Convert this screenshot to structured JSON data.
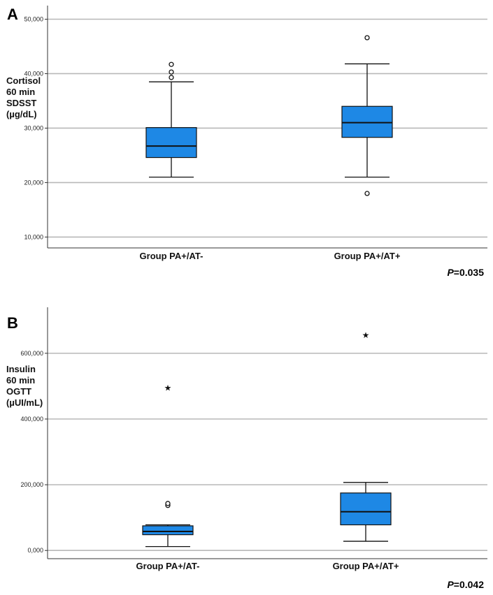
{
  "chart_data": [
    {
      "panel_label": "A",
      "type": "box",
      "ylabel": [
        "Cortisol",
        "60 min",
        "SDSST",
        "(µg/dL)"
      ],
      "ylim": [
        8,
        52.5
      ],
      "ticks": [
        10,
        20,
        30,
        40,
        50
      ],
      "tick_labels": [
        "10,000",
        "20,000",
        "30,000",
        "40,000",
        "50,000"
      ],
      "grid": true,
      "categories": [
        "Group PA+/AT-",
        "Group PA+/AT+"
      ],
      "boxes": [
        {
          "whisker_low": 21.0,
          "q1": 24.6,
          "median": 26.7,
          "q3": 30.1,
          "whisker_high": 38.5,
          "outliers": [
            39.3,
            40.3,
            41.7
          ],
          "extremes": []
        },
        {
          "whisker_low": 21.0,
          "q1": 28.3,
          "median": 31.0,
          "q3": 34.0,
          "whisker_high": 41.8,
          "outliers": [
            18.0,
            46.6
          ],
          "extremes": []
        }
      ],
      "p_prefix": "P",
      "p_suffix": "=0.035"
    },
    {
      "panel_label": "B",
      "type": "box",
      "ylabel": [
        "Insulin",
        "60 min",
        "OGTT",
        "(µUI/mL)"
      ],
      "ylim": [
        -25,
        740
      ],
      "ticks": [
        0,
        200,
        400,
        600
      ],
      "tick_labels": [
        "0,000",
        "200,000",
        "400,000",
        "600,000"
      ],
      "grid": true,
      "categories": [
        "Group PA+/AT-",
        "Group PA+/AT+"
      ],
      "boxes": [
        {
          "whisker_low": 12,
          "q1": 48,
          "median": 58,
          "q3": 75,
          "whisker_high": 78,
          "outliers": [
            137,
            143
          ],
          "extremes": [
            495
          ]
        },
        {
          "whisker_low": 28,
          "q1": 78,
          "median": 118,
          "q3": 175,
          "whisker_high": 207,
          "outliers": [],
          "extremes": [
            655
          ]
        }
      ],
      "p_prefix": "P",
      "p_suffix": "=0.042"
    }
  ],
  "icons": {
    "extreme_marker": "star-icon",
    "outlier_marker": "circle-icon"
  }
}
